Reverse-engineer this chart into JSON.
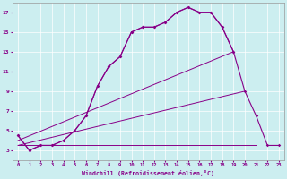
{
  "xlabel": "Windchill (Refroidissement éolien,°C)",
  "background_color": "#cceef0",
  "line_color": "#880088",
  "xlim": [
    -0.5,
    23.5
  ],
  "ylim": [
    2.0,
    18.0
  ],
  "x_ticks": [
    0,
    1,
    2,
    3,
    4,
    5,
    6,
    7,
    8,
    9,
    10,
    11,
    12,
    13,
    14,
    15,
    16,
    17,
    18,
    19,
    20,
    21,
    22,
    23
  ],
  "y_ticks": [
    3,
    5,
    7,
    9,
    11,
    13,
    15,
    17
  ],
  "grid_color": "#ffffff",
  "curve1_x": [
    0,
    1,
    2,
    3,
    4,
    5,
    6,
    7,
    8,
    9,
    10,
    11,
    12,
    13,
    14,
    15,
    16,
    17,
    18,
    19
  ],
  "curve1_y": [
    4.5,
    3.0,
    3.5,
    3.5,
    4.0,
    5.0,
    6.5,
    9.5,
    11.5,
    12.5,
    15.0,
    15.5,
    15.5,
    16.0,
    17.0,
    17.5,
    17.0,
    17.0,
    15.5,
    13.0
  ],
  "curve2_x": [
    0,
    1,
    2,
    3,
    4,
    5,
    6,
    7,
    8,
    9,
    10,
    11,
    12,
    13,
    14,
    15,
    16,
    17,
    18,
    19,
    20,
    21,
    22,
    23
  ],
  "curve2_y": [
    4.5,
    3.0,
    3.5,
    3.5,
    4.0,
    5.0,
    6.5,
    9.5,
    11.5,
    12.5,
    15.0,
    15.5,
    15.5,
    16.0,
    17.0,
    17.5,
    17.0,
    17.0,
    15.5,
    13.0,
    9.0,
    6.5,
    3.5,
    3.5
  ],
  "line1_x": [
    0,
    19
  ],
  "line1_y": [
    4.0,
    13.0
  ],
  "line2_x": [
    0,
    20
  ],
  "line2_y": [
    3.5,
    9.0
  ],
  "line3_x": [
    0,
    21
  ],
  "line3_y": [
    3.5,
    3.5
  ]
}
